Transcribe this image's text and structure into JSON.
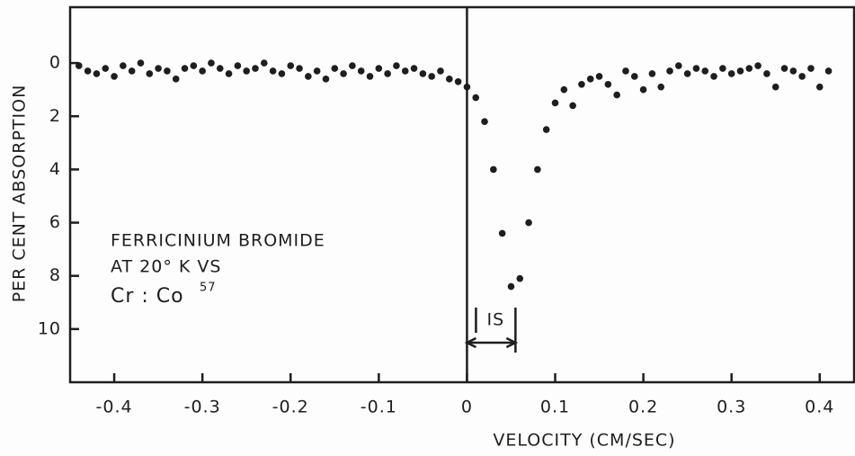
{
  "chart_data": {
    "type": "scatter",
    "xlabel": "VELOCITY  (CM/SEC)",
    "ylabel": "PER CENT ABSORPTION",
    "annotations": [
      "FERRICINIUM BROMIDE",
      "AT 20° K VS",
      "Cr : Co",
      "57"
    ],
    "isomer_shift": {
      "label": "IS",
      "x": [
        0,
        0.055
      ]
    },
    "color": "#1e1e1e",
    "xlim": [
      -0.45,
      0.44
    ],
    "xticks": [
      -0.4,
      -0.3,
      -0.2,
      -0.1,
      0,
      0.1,
      0.2,
      0.3,
      0.4
    ],
    "ylim": [
      -2.1,
      12
    ],
    "y_inverted": true,
    "yticks": [
      0,
      2,
      4,
      6,
      8,
      10
    ],
    "x": [
      -0.44,
      -0.43,
      -0.42,
      -0.41,
      -0.4,
      -0.39,
      -0.38,
      -0.37,
      -0.36,
      -0.35,
      -0.34,
      -0.33,
      -0.32,
      -0.31,
      -0.3,
      -0.29,
      -0.28,
      -0.27,
      -0.26,
      -0.25,
      -0.24,
      -0.23,
      -0.22,
      -0.21,
      -0.2,
      -0.19,
      -0.18,
      -0.17,
      -0.16,
      -0.15,
      -0.14,
      -0.13,
      -0.12,
      -0.11,
      -0.1,
      -0.09,
      -0.08,
      -0.07,
      -0.06,
      -0.05,
      -0.04,
      -0.03,
      -0.02,
      -0.01,
      0,
      0.01,
      0.02,
      0.03,
      0.04,
      0.05,
      0.06,
      0.07,
      0.08,
      0.09,
      0.1,
      0.11,
      0.12,
      0.13,
      0.14,
      0.15,
      0.16,
      0.17,
      0.18,
      0.19,
      0.2,
      0.21,
      0.22,
      0.23,
      0.24,
      0.25,
      0.26,
      0.27,
      0.28,
      0.29,
      0.3,
      0.31,
      0.32,
      0.33,
      0.34,
      0.35,
      0.36,
      0.37,
      0.38,
      0.39,
      0.4,
      0.41
    ],
    "values": [
      0.1,
      0.3,
      0.4,
      0.2,
      0.5,
      0.1,
      0.3,
      0.0,
      0.4,
      0.2,
      0.3,
      0.6,
      0.2,
      0.1,
      0.3,
      0.0,
      0.2,
      0.4,
      0.1,
      0.3,
      0.2,
      0.0,
      0.3,
      0.4,
      0.1,
      0.2,
      0.5,
      0.3,
      0.6,
      0.2,
      0.4,
      0.1,
      0.3,
      0.5,
      0.2,
      0.4,
      0.1,
      0.3,
      0.2,
      0.4,
      0.5,
      0.3,
      0.6,
      0.7,
      0.9,
      1.3,
      2.2,
      4.0,
      6.4,
      8.4,
      8.1,
      6.0,
      4.0,
      2.5,
      1.5,
      1.0,
      1.6,
      0.8,
      0.6,
      0.5,
      0.8,
      1.2,
      0.3,
      0.5,
      1.0,
      0.4,
      0.9,
      0.3,
      0.1,
      0.4,
      0.2,
      0.3,
      0.5,
      0.2,
      0.4,
      0.3,
      0.2,
      0.1,
      0.4,
      0.9,
      0.2,
      0.3,
      0.5,
      0.2,
      0.9,
      0.3
    ]
  }
}
